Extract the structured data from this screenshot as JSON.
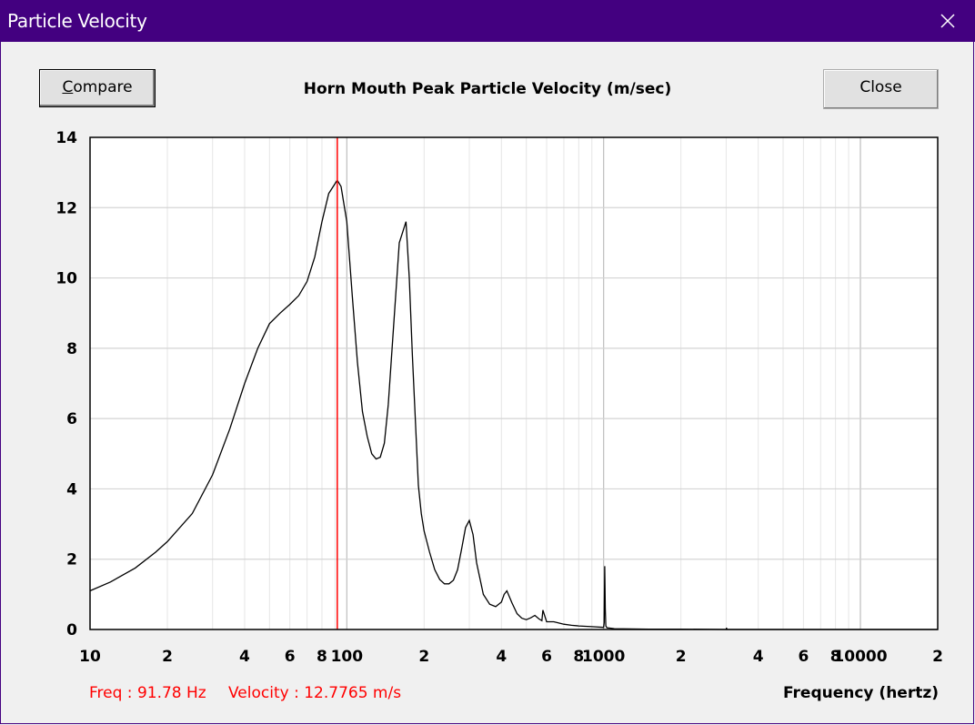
{
  "window": {
    "title": "Particle Velocity"
  },
  "toolbar": {
    "compare_label_first": "C",
    "compare_label_rest": "ompare",
    "close_label": "Close"
  },
  "status": {
    "freq": "Freq : 91.78 Hz",
    "velocity": "Velocity : 12.7765 m/s"
  },
  "chart_data": {
    "type": "line",
    "title": "Horn Mouth Peak Particle Velocity (m/sec)",
    "xlabel": "Frequency (hertz)",
    "ylabel": "",
    "x_scale": "log",
    "xlim": [
      10,
      20000
    ],
    "ylim": [
      0,
      14
    ],
    "yticks": [
      0,
      2,
      4,
      6,
      8,
      10,
      12,
      14
    ],
    "xtick_labels": [
      {
        "x": 10,
        "label": "10"
      },
      {
        "x": 20,
        "label": "2"
      },
      {
        "x": 40,
        "label": "4"
      },
      {
        "x": 60,
        "label": "6"
      },
      {
        "x": 80,
        "label": "8"
      },
      {
        "x": 100,
        "label": "100"
      },
      {
        "x": 200,
        "label": "2"
      },
      {
        "x": 400,
        "label": "4"
      },
      {
        "x": 600,
        "label": "6"
      },
      {
        "x": 800,
        "label": "8"
      },
      {
        "x": 1000,
        "label": "1000"
      },
      {
        "x": 2000,
        "label": "2"
      },
      {
        "x": 4000,
        "label": "4"
      },
      {
        "x": 6000,
        "label": "6"
      },
      {
        "x": 8000,
        "label": "8"
      },
      {
        "x": 10000,
        "label": "10000"
      },
      {
        "x": 20000,
        "label": "2"
      }
    ],
    "grid": true,
    "cursor": {
      "x": 91.78,
      "y": 12.7765
    },
    "series": [
      {
        "x": [
          10,
          12,
          15,
          18,
          20,
          25,
          30,
          35,
          40,
          45,
          50,
          55,
          60,
          65,
          70,
          75,
          80,
          85,
          91.78,
          95,
          100,
          105,
          110,
          115,
          120,
          125,
          130,
          135,
          140,
          145,
          150,
          160,
          170,
          175,
          180,
          190,
          195,
          200,
          210,
          220,
          230,
          240,
          250,
          260,
          270,
          280,
          290,
          300,
          310,
          320,
          340,
          360,
          380,
          400,
          410,
          420,
          440,
          460,
          480,
          500,
          520,
          540,
          560,
          575,
          580,
          600,
          640,
          700,
          750,
          800,
          900,
          1000,
          1005,
          1010,
          1015,
          1020,
          1030,
          1060,
          1100,
          1500,
          2000,
          3000,
          3010,
          3020,
          5000,
          10000,
          20000
        ],
        "y": [
          1.1,
          1.35,
          1.75,
          2.2,
          2.5,
          3.3,
          4.4,
          5.7,
          7.0,
          8.0,
          8.7,
          9.0,
          9.25,
          9.5,
          9.9,
          10.6,
          11.6,
          12.4,
          12.78,
          12.6,
          11.6,
          9.5,
          7.6,
          6.2,
          5.5,
          5.0,
          4.85,
          4.9,
          5.3,
          6.4,
          8.0,
          11.0,
          11.6,
          10.0,
          7.8,
          4.1,
          3.3,
          2.8,
          2.2,
          1.7,
          1.42,
          1.3,
          1.3,
          1.4,
          1.7,
          2.3,
          2.9,
          3.1,
          2.7,
          1.9,
          1.0,
          0.72,
          0.65,
          0.78,
          1.0,
          1.1,
          0.75,
          0.45,
          0.32,
          0.28,
          0.33,
          0.4,
          0.3,
          0.25,
          0.55,
          0.22,
          0.22,
          0.15,
          0.12,
          0.1,
          0.08,
          0.06,
          0.2,
          1.8,
          0.6,
          0.1,
          0.05,
          0.04,
          0.02,
          0.01,
          0.01,
          0.0,
          0.05,
          0.0,
          0.0,
          0.0,
          0.0
        ]
      }
    ]
  }
}
